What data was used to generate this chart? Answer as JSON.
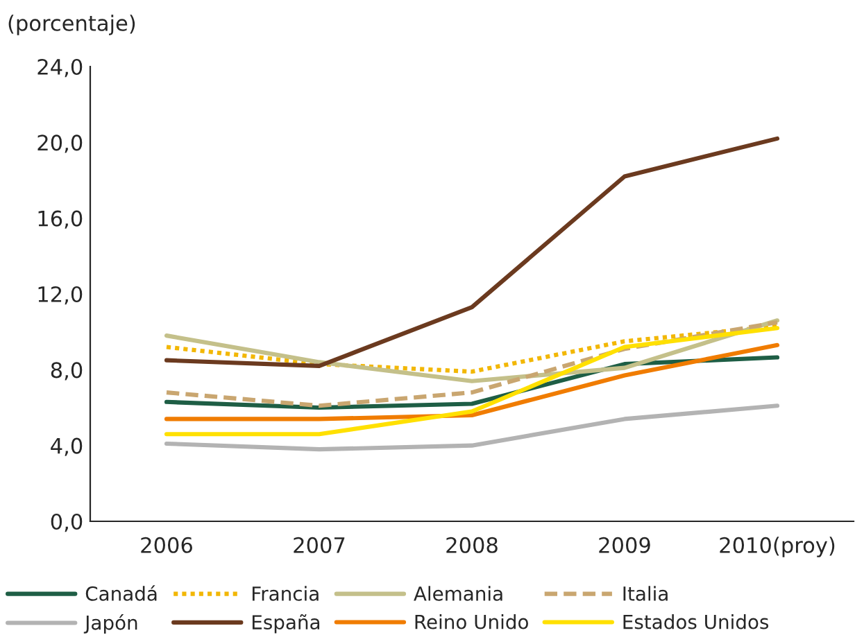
{
  "chart_data": {
    "type": "line",
    "ylabel": "(porcentaje)",
    "categories": [
      "2006",
      "2007",
      "2008",
      "2009",
      "2010(proy)"
    ],
    "ylim": [
      0,
      24
    ],
    "yticks": [
      {
        "value": 0,
        "label": "0,0"
      },
      {
        "value": 4,
        "label": "4,0"
      },
      {
        "value": 8,
        "label": "8,0"
      },
      {
        "value": 12,
        "label": "12,0"
      },
      {
        "value": 16,
        "label": "16,0"
      },
      {
        "value": 20,
        "label": "20,0"
      },
      {
        "value": 24,
        "label": "24,0"
      }
    ],
    "grid": false,
    "legend": "bottom",
    "marker": "none",
    "series": [
      {
        "name": "Canadá",
        "color": "#1e5e45",
        "line_style": "solid",
        "values": [
          6.3,
          6.0,
          6.2,
          8.3,
          8.65
        ]
      },
      {
        "name": "Francia",
        "color": "#f2b705",
        "line_style": "dotted",
        "values": [
          9.2,
          8.3,
          7.9,
          9.5,
          10.3
        ]
      },
      {
        "name": "Alemania",
        "color": "#c4c08a",
        "line_style": "solid",
        "values": [
          9.8,
          8.4,
          7.4,
          8.1,
          10.6
        ]
      },
      {
        "name": "Italia",
        "color": "#c9a670",
        "line_style": "dashed",
        "values": [
          6.8,
          6.1,
          6.8,
          9.1,
          10.5
        ]
      },
      {
        "name": "Japón",
        "color": "#b3b3b3",
        "line_style": "solid",
        "values": [
          4.1,
          3.8,
          4.0,
          5.4,
          6.1
        ]
      },
      {
        "name": "España",
        "color": "#6b3a1f",
        "line_style": "solid",
        "values": [
          8.5,
          8.2,
          11.3,
          18.2,
          20.2
        ]
      },
      {
        "name": "Reino Unido",
        "color": "#f07c00",
        "line_style": "solid",
        "values": [
          5.4,
          5.4,
          5.6,
          7.7,
          9.3
        ]
      },
      {
        "name": "Estados Unidos",
        "color": "#ffe000",
        "line_style": "solid",
        "values": [
          4.6,
          4.6,
          5.8,
          9.2,
          10.2
        ]
      }
    ]
  }
}
